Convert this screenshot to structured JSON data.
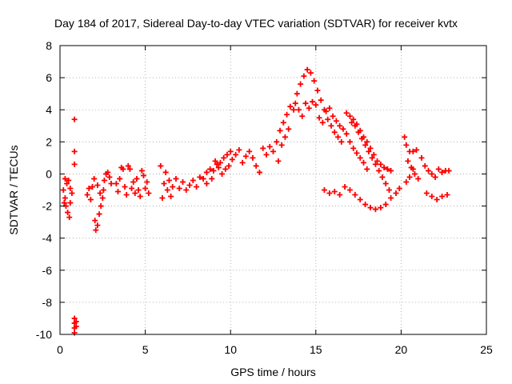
{
  "chart_data": {
    "type": "scatter",
    "title": "Day 184 of 2017, Sidereal Day-to-day VTEC variation (SDTVAR) for receiver kvtx",
    "xlabel": "GPS time / hours",
    "ylabel": "SDTVAR / TECUs",
    "xlim": [
      0,
      25
    ],
    "ylim": [
      -10,
      8
    ],
    "xticks": [
      0,
      5,
      10,
      15,
      20,
      25
    ],
    "yticks": [
      -10,
      -8,
      -6,
      -4,
      -2,
      0,
      2,
      4,
      6,
      8
    ],
    "grid": true,
    "marker": "+",
    "series": [
      {
        "name": "SDTVAR",
        "color": "#ff0000",
        "points": [
          [
            0.2,
            -1.0
          ],
          [
            0.3,
            -1.5
          ],
          [
            0.35,
            -2.0
          ],
          [
            0.45,
            -2.4
          ],
          [
            0.55,
            -2.7
          ],
          [
            0.6,
            -1.8
          ],
          [
            0.4,
            -0.6
          ],
          [
            0.5,
            -0.4
          ],
          [
            0.6,
            -0.9
          ],
          [
            0.7,
            -1.2
          ],
          [
            0.25,
            -1.8
          ],
          [
            0.3,
            -0.3
          ],
          [
            0.85,
            3.4
          ],
          [
            0.85,
            1.4
          ],
          [
            0.85,
            0.6
          ],
          [
            0.85,
            -9.0
          ],
          [
            0.85,
            -9.3
          ],
          [
            0.85,
            -9.6
          ],
          [
            0.85,
            -9.9
          ],
          [
            0.95,
            -9.2
          ],
          [
            0.95,
            -9.5
          ],
          [
            1.6,
            -1.3
          ],
          [
            1.7,
            -0.9
          ],
          [
            1.8,
            -1.6
          ],
          [
            1.9,
            -0.8
          ],
          [
            2.0,
            -0.3
          ],
          [
            2.05,
            -2.9
          ],
          [
            2.1,
            -3.5
          ],
          [
            2.2,
            -3.2
          ],
          [
            2.3,
            -2.5
          ],
          [
            2.4,
            -2.0
          ],
          [
            2.5,
            -1.5
          ],
          [
            2.55,
            -1.0
          ],
          [
            2.6,
            -0.4
          ],
          [
            2.7,
            0.0
          ],
          [
            2.8,
            0.1
          ],
          [
            2.9,
            -0.2
          ],
          [
            3.0,
            -0.6
          ],
          [
            2.2,
            -0.7
          ],
          [
            2.35,
            -1.2
          ],
          [
            3.3,
            -0.6
          ],
          [
            3.4,
            -1.1
          ],
          [
            3.5,
            -0.3
          ],
          [
            3.6,
            0.4
          ],
          [
            3.7,
            0.3
          ],
          [
            3.8,
            -0.8
          ],
          [
            3.9,
            -1.3
          ],
          [
            4.0,
            0.5
          ],
          [
            4.1,
            0.3
          ],
          [
            4.2,
            -0.9
          ],
          [
            4.3,
            -0.5
          ],
          [
            4.4,
            -1.2
          ],
          [
            4.5,
            -0.3
          ],
          [
            4.6,
            -1.0
          ],
          [
            4.7,
            -1.4
          ],
          [
            4.8,
            0.2
          ],
          [
            4.9,
            -0.1
          ],
          [
            5.0,
            -0.9
          ],
          [
            5.1,
            -0.5
          ],
          [
            5.2,
            -1.2
          ],
          [
            5.9,
            0.5
          ],
          [
            6.0,
            -1.5
          ],
          [
            6.1,
            -0.6
          ],
          [
            6.2,
            0.1
          ],
          [
            6.3,
            -1.0
          ],
          [
            6.4,
            -0.4
          ],
          [
            6.5,
            -1.4
          ],
          [
            6.6,
            -0.8
          ],
          [
            6.8,
            -0.3
          ],
          [
            7.0,
            -0.9
          ],
          [
            7.2,
            -0.5
          ],
          [
            7.4,
            -1.0
          ],
          [
            7.6,
            -0.7
          ],
          [
            7.8,
            -0.4
          ],
          [
            8.0,
            -0.8
          ],
          [
            8.2,
            -0.2
          ],
          [
            8.4,
            -0.3
          ],
          [
            8.6,
            0.1
          ],
          [
            8.8,
            0.3
          ],
          [
            9.0,
            0.2
          ],
          [
            9.2,
            0.6
          ],
          [
            9.4,
            0.7
          ],
          [
            9.6,
            1.0
          ],
          [
            9.8,
            1.2
          ],
          [
            10.0,
            1.4
          ],
          [
            8.6,
            -0.6
          ],
          [
            8.9,
            -0.3
          ],
          [
            9.1,
            0.8
          ],
          [
            9.3,
            0.4
          ],
          [
            9.5,
            0.0
          ],
          [
            9.7,
            0.3
          ],
          [
            9.9,
            0.5
          ],
          [
            10.1,
            0.9
          ],
          [
            10.3,
            1.2
          ],
          [
            10.5,
            1.5
          ],
          [
            10.7,
            0.7
          ],
          [
            10.9,
            1.1
          ],
          [
            11.1,
            1.4
          ],
          [
            11.3,
            1.0
          ],
          [
            11.5,
            0.5
          ],
          [
            11.7,
            0.1
          ],
          [
            11.9,
            1.6
          ],
          [
            12.1,
            1.2
          ],
          [
            12.3,
            1.7
          ],
          [
            12.5,
            1.4
          ],
          [
            12.7,
            2.0
          ],
          [
            12.9,
            2.7
          ],
          [
            13.1,
            3.2
          ],
          [
            13.3,
            3.7
          ],
          [
            13.5,
            4.2
          ],
          [
            13.7,
            4.0
          ],
          [
            13.0,
            1.8
          ],
          [
            13.2,
            2.3
          ],
          [
            12.8,
            0.8
          ],
          [
            13.4,
            2.8
          ],
          [
            13.9,
            5.0
          ],
          [
            14.1,
            5.6
          ],
          [
            14.3,
            6.1
          ],
          [
            14.5,
            6.5
          ],
          [
            14.7,
            6.3
          ],
          [
            14.9,
            5.8
          ],
          [
            15.1,
            5.2
          ],
          [
            15.3,
            4.6
          ],
          [
            15.5,
            4.0
          ],
          [
            15.7,
            3.4
          ],
          [
            15.9,
            3.0
          ],
          [
            16.1,
            2.6
          ],
          [
            16.3,
            2.3
          ],
          [
            16.5,
            2.0
          ],
          [
            13.8,
            4.4
          ],
          [
            14.0,
            4.0
          ],
          [
            14.2,
            3.6
          ],
          [
            14.4,
            4.4
          ],
          [
            14.6,
            4.1
          ],
          [
            14.8,
            4.5
          ],
          [
            15.0,
            4.3
          ],
          [
            15.2,
            3.5
          ],
          [
            15.4,
            3.2
          ],
          [
            15.6,
            3.9
          ],
          [
            15.8,
            4.1
          ],
          [
            16.0,
            3.6
          ],
          [
            16.2,
            3.3
          ],
          [
            16.4,
            3.0
          ],
          [
            16.6,
            2.8
          ],
          [
            16.8,
            2.5
          ],
          [
            17.0,
            2.0
          ],
          [
            17.2,
            1.6
          ],
          [
            17.4,
            1.3
          ],
          [
            17.6,
            1.0
          ],
          [
            17.8,
            0.7
          ],
          [
            18.0,
            0.3
          ],
          [
            17.1,
            3.2
          ],
          [
            17.3,
            3.0
          ],
          [
            17.5,
            2.6
          ],
          [
            17.7,
            2.2
          ],
          [
            17.9,
            1.8
          ],
          [
            18.1,
            1.4
          ],
          [
            18.3,
            1.0
          ],
          [
            18.5,
            0.6
          ],
          [
            18.7,
            0.2
          ],
          [
            18.9,
            -0.2
          ],
          [
            19.1,
            -0.6
          ],
          [
            19.3,
            -1.0
          ],
          [
            16.8,
            3.8
          ],
          [
            17.0,
            3.6
          ],
          [
            17.2,
            3.4
          ],
          [
            17.4,
            3.1
          ],
          [
            17.6,
            2.7
          ],
          [
            17.8,
            2.3
          ],
          [
            18.0,
            2.0
          ],
          [
            18.2,
            1.6
          ],
          [
            18.4,
            1.2
          ],
          [
            18.6,
            0.8
          ],
          [
            18.8,
            0.6
          ],
          [
            19.0,
            0.4
          ],
          [
            19.2,
            0.3
          ],
          [
            19.4,
            0.2
          ],
          [
            15.5,
            -1.0
          ],
          [
            15.8,
            -1.2
          ],
          [
            16.1,
            -1.1
          ],
          [
            16.4,
            -1.3
          ],
          [
            16.7,
            -0.8
          ],
          [
            17.0,
            -1.0
          ],
          [
            17.3,
            -1.3
          ],
          [
            17.6,
            -1.6
          ],
          [
            17.9,
            -1.9
          ],
          [
            18.2,
            -2.1
          ],
          [
            18.5,
            -2.2
          ],
          [
            18.8,
            -2.1
          ],
          [
            19.1,
            -1.9
          ],
          [
            19.4,
            -1.5
          ],
          [
            19.7,
            -1.2
          ],
          [
            19.9,
            -0.9
          ],
          [
            20.2,
            2.3
          ],
          [
            20.3,
            1.8
          ],
          [
            20.5,
            1.4
          ],
          [
            20.7,
            1.4
          ],
          [
            20.9,
            1.5
          ],
          [
            20.4,
            0.8
          ],
          [
            20.6,
            0.4
          ],
          [
            20.8,
            0.0
          ],
          [
            21.0,
            -0.3
          ],
          [
            20.3,
            -0.5
          ],
          [
            20.5,
            -0.2
          ],
          [
            20.7,
            0.3
          ],
          [
            21.2,
            1.0
          ],
          [
            21.4,
            0.5
          ],
          [
            21.6,
            0.2
          ],
          [
            21.8,
            0.0
          ],
          [
            22.0,
            -0.2
          ],
          [
            22.2,
            0.3
          ],
          [
            22.4,
            0.1
          ],
          [
            22.6,
            0.2
          ],
          [
            22.8,
            0.2
          ],
          [
            21.5,
            -1.2
          ],
          [
            21.8,
            -1.4
          ],
          [
            22.1,
            -1.6
          ],
          [
            22.4,
            -1.4
          ],
          [
            22.7,
            -1.3
          ]
        ]
      }
    ]
  }
}
